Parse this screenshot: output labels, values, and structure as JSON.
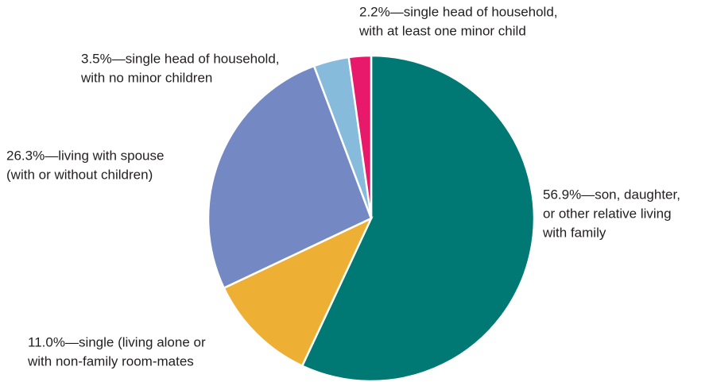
{
  "chart_data": {
    "type": "pie",
    "categories": [
      [
        "56.9%—son, daughter,",
        "or other relative living",
        "with family"
      ],
      [
        "11.0%—single (living alone or",
        "with non-family room-mates"
      ],
      [
        "26.3%—living with spouse",
        "(with or without children)"
      ],
      [
        "3.5%—single head of household,",
        "with no minor children"
      ],
      [
        "2.2%—single head of household,",
        "with at least one minor child"
      ]
    ],
    "values": [
      56.9,
      11.0,
      26.3,
      3.5,
      2.2
    ],
    "colors": [
      "#007874",
      "#eeaf35",
      "#7489c3",
      "#86bbdc",
      "#e8196b"
    ]
  }
}
